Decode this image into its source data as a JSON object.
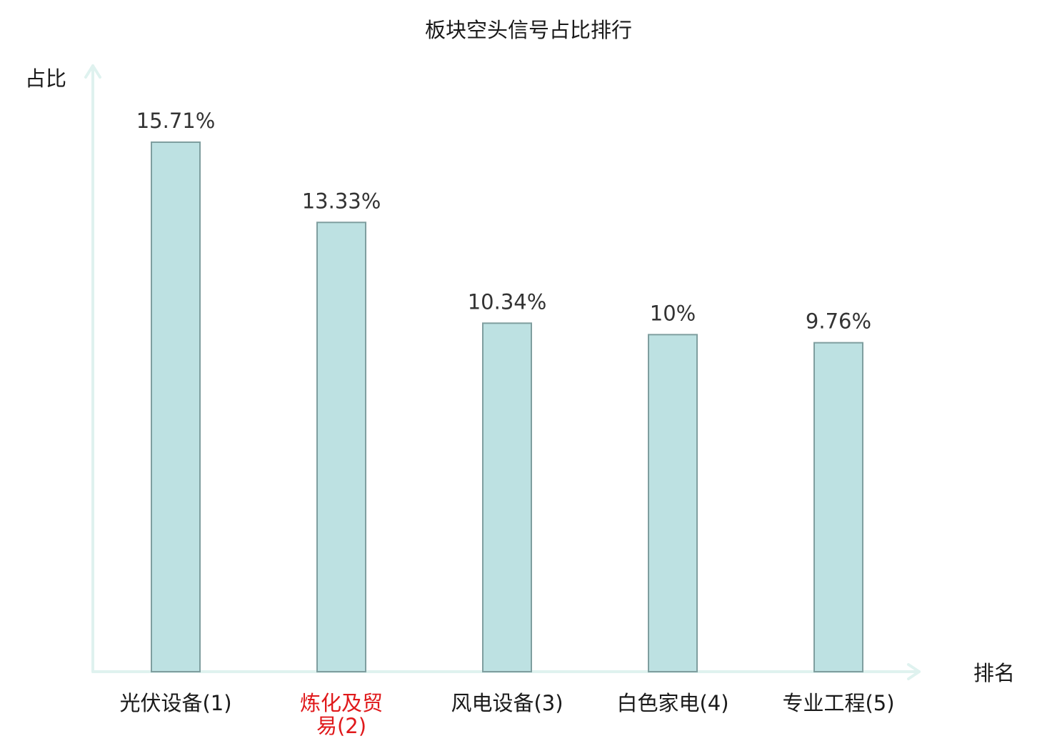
{
  "chart_data": {
    "type": "bar",
    "title": "板块空头信号占比排行",
    "ylabel": "占比",
    "xlabel": "排名",
    "ylim": [
      0,
      17.5
    ],
    "grid": false,
    "categories": [
      "光伏设备(1)",
      "炼化及贸易(2)",
      "风电设备(3)",
      "白色家电(4)",
      "专业工程(5)"
    ],
    "category_lines": [
      [
        "光伏设备(1)"
      ],
      [
        "炼化及贸",
        "易(2)"
      ],
      [
        "风电设备(3)"
      ],
      [
        "白色家电(4)"
      ],
      [
        "专业工程(5)"
      ]
    ],
    "values": [
      15.71,
      13.33,
      10.34,
      10,
      9.76
    ],
    "value_labels": [
      "15.71%",
      "13.33%",
      "10.34%",
      "10%",
      "9.76%"
    ],
    "highlight_index": 1
  },
  "colors": {
    "bar_fill": "#bde1e2",
    "bar_stroke": "#7f9e9f",
    "axis": "#dff2ef",
    "text": "#1a1a1a",
    "value_text": "#333333",
    "highlight_text": "#e0191b"
  }
}
